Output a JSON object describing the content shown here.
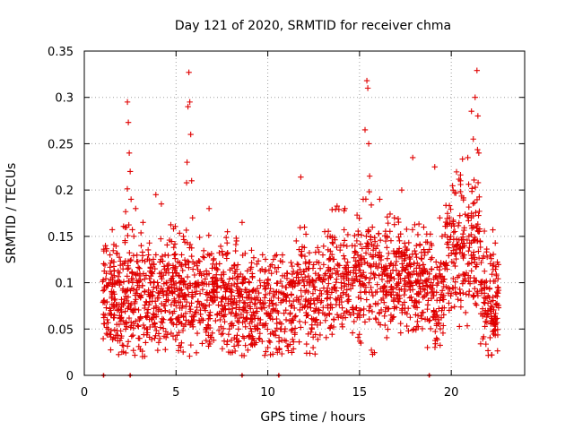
{
  "chart_data": {
    "type": "scatter",
    "title": "Day 121 of 2020, SRMTID for receiver chma",
    "xlabel": "GPS time / hours",
    "ylabel": "SRMTID / TECUs",
    "xlim": [
      0,
      24
    ],
    "ylim": [
      0,
      0.35
    ],
    "x_ticks": [
      0,
      5,
      10,
      15,
      20
    ],
    "x_tick_labels": [
      "0",
      "5",
      "10",
      "15",
      "20"
    ],
    "y_ticks": [
      0,
      0.05,
      0.1,
      0.15,
      0.2,
      0.25,
      0.3,
      0.35
    ],
    "y_tick_labels": [
      "0",
      "0.05",
      "0.1",
      "0.15",
      "0.2",
      "0.25",
      "0.3",
      "0.35"
    ],
    "grid": true,
    "marker": "+",
    "marker_color": "#e00000",
    "series": [
      {
        "name": "SRMTID",
        "points": [
          [
            1.05,
            0.08
          ],
          [
            1.1,
            0.095
          ],
          [
            1.15,
            0.14
          ],
          [
            1.2,
            0.11
          ],
          [
            1.25,
            0.06
          ],
          [
            1.3,
            0.05
          ],
          [
            1.35,
            0.1
          ],
          [
            1.4,
            0.13
          ],
          [
            1.45,
            0.065
          ],
          [
            1.5,
            0.085
          ],
          [
            1.6,
            0.09
          ],
          [
            1.7,
            0.04
          ],
          [
            1.8,
            0.07
          ],
          [
            1.9,
            0.055
          ],
          [
            2.0,
            0.1
          ],
          [
            2.1,
            0.12
          ],
          [
            2.2,
            0.09
          ],
          [
            2.3,
            0.16
          ],
          [
            2.35,
            0.295
          ],
          [
            2.4,
            0.273
          ],
          [
            2.45,
            0.24
          ],
          [
            2.5,
            0.22
          ],
          [
            2.55,
            0.19
          ],
          [
            2.6,
            0.11
          ],
          [
            2.7,
            0.15
          ],
          [
            2.8,
            0.18
          ],
          [
            2.9,
            0.1
          ],
          [
            3.0,
            0.06
          ],
          [
            3.1,
            0.14
          ],
          [
            3.2,
            0.165
          ],
          [
            3.3,
            0.09
          ],
          [
            3.4,
            0.05
          ],
          [
            3.5,
            0.13
          ],
          [
            3.6,
            0.1
          ],
          [
            3.7,
            0.08
          ],
          [
            3.8,
            0.12
          ],
          [
            3.9,
            0.195
          ],
          [
            4.0,
            0.027
          ],
          [
            4.1,
            0.11
          ],
          [
            4.2,
            0.185
          ],
          [
            4.3,
            0.09
          ],
          [
            4.4,
            0.07
          ],
          [
            4.5,
            0.1
          ],
          [
            4.6,
            0.12
          ],
          [
            4.7,
            0.06
          ],
          [
            4.8,
            0.09
          ],
          [
            4.9,
            0.13
          ],
          [
            5.0,
            0.075
          ],
          [
            5.1,
            0.06
          ],
          [
            5.2,
            0.1
          ],
          [
            5.3,
            0.035
          ],
          [
            5.4,
            0.15
          ],
          [
            5.5,
            0.12
          ],
          [
            5.6,
            0.23
          ],
          [
            5.65,
            0.29
          ],
          [
            5.7,
            0.327
          ],
          [
            5.75,
            0.295
          ],
          [
            5.8,
            0.26
          ],
          [
            5.85,
            0.21
          ],
          [
            5.9,
            0.17
          ],
          [
            6.0,
            0.12
          ],
          [
            6.2,
            0.08
          ],
          [
            6.4,
            0.1
          ],
          [
            6.6,
            0.07
          ],
          [
            6.8,
            0.18
          ],
          [
            7.0,
            0.09
          ],
          [
            7.2,
            0.12
          ],
          [
            7.4,
            0.06
          ],
          [
            7.6,
            0.1
          ],
          [
            7.8,
            0.155
          ],
          [
            8.0,
            0.08
          ],
          [
            8.2,
            0.11
          ],
          [
            8.4,
            0.05
          ],
          [
            8.6,
            0.165
          ],
          [
            8.8,
            0.07
          ],
          [
            9.0,
            0.09
          ],
          [
            9.2,
            0.04
          ],
          [
            9.4,
            0.12
          ],
          [
            9.6,
            0.06
          ],
          [
            9.8,
            0.1
          ],
          [
            10.0,
            0.03
          ],
          [
            10.2,
            0.11
          ],
          [
            10.4,
            0.07
          ],
          [
            10.6,
            0.09
          ],
          [
            10.8,
            0.13
          ],
          [
            11.0,
            0.06
          ],
          [
            11.2,
            0.1
          ],
          [
            11.4,
            0.08
          ],
          [
            11.6,
            0.12
          ],
          [
            11.8,
            0.214
          ],
          [
            12.0,
            0.16
          ],
          [
            12.2,
            0.09
          ],
          [
            12.4,
            0.05
          ],
          [
            12.6,
            0.11
          ],
          [
            12.8,
            0.07
          ],
          [
            13.0,
            0.13
          ],
          [
            13.2,
            0.09
          ],
          [
            13.4,
            0.15
          ],
          [
            13.6,
            0.06
          ],
          [
            13.8,
            0.12
          ],
          [
            14.0,
            0.1
          ],
          [
            14.2,
            0.18
          ],
          [
            14.4,
            0.08
          ],
          [
            14.6,
            0.14
          ],
          [
            14.8,
            0.11
          ],
          [
            15.0,
            0.07
          ],
          [
            15.2,
            0.19
          ],
          [
            15.3,
            0.265
          ],
          [
            15.4,
            0.318
          ],
          [
            15.45,
            0.31
          ],
          [
            15.5,
            0.25
          ],
          [
            15.55,
            0.215
          ],
          [
            15.7,
            0.16
          ],
          [
            15.9,
            0.12
          ],
          [
            16.1,
            0.19
          ],
          [
            16.3,
            0.09
          ],
          [
            16.5,
            0.15
          ],
          [
            16.7,
            0.11
          ],
          [
            16.9,
            0.17
          ],
          [
            17.1,
            0.08
          ],
          [
            17.3,
            0.2
          ],
          [
            17.5,
            0.13
          ],
          [
            17.7,
            0.1
          ],
          [
            17.9,
            0.235
          ],
          [
            18.1,
            0.14
          ],
          [
            18.3,
            0.09
          ],
          [
            18.5,
            0.16
          ],
          [
            18.7,
            0.03
          ],
          [
            18.9,
            0.1
          ],
          [
            19.1,
            0.225
          ],
          [
            19.3,
            0.06
          ],
          [
            19.5,
            0.15
          ],
          [
            19.7,
            0.12
          ],
          [
            19.9,
            0.17
          ],
          [
            20.1,
            0.2
          ],
          [
            20.3,
            0.14
          ],
          [
            20.5,
            0.21
          ],
          [
            20.7,
            0.13
          ],
          [
            20.9,
            0.235
          ],
          [
            21.1,
            0.285
          ],
          [
            21.2,
            0.255
          ],
          [
            21.3,
            0.3
          ],
          [
            21.4,
            0.329
          ],
          [
            21.45,
            0.28
          ],
          [
            21.5,
            0.24
          ],
          [
            21.6,
            0.034
          ],
          [
            21.8,
            0.1
          ],
          [
            22.0,
            0.07
          ],
          [
            22.2,
            0.022
          ],
          [
            22.3,
            0.12
          ],
          [
            22.4,
            0.06
          ],
          [
            22.5,
            0.09
          ]
        ],
        "extra_scatter": {
          "count": 2200,
          "x_range": [
            1.0,
            22.6
          ],
          "baseline_y": [
            0.04,
            0.16
          ]
        }
      }
    ],
    "gap_markers_x": [
      1.05,
      2.5,
      8.6,
      10.6,
      18.8
    ]
  }
}
